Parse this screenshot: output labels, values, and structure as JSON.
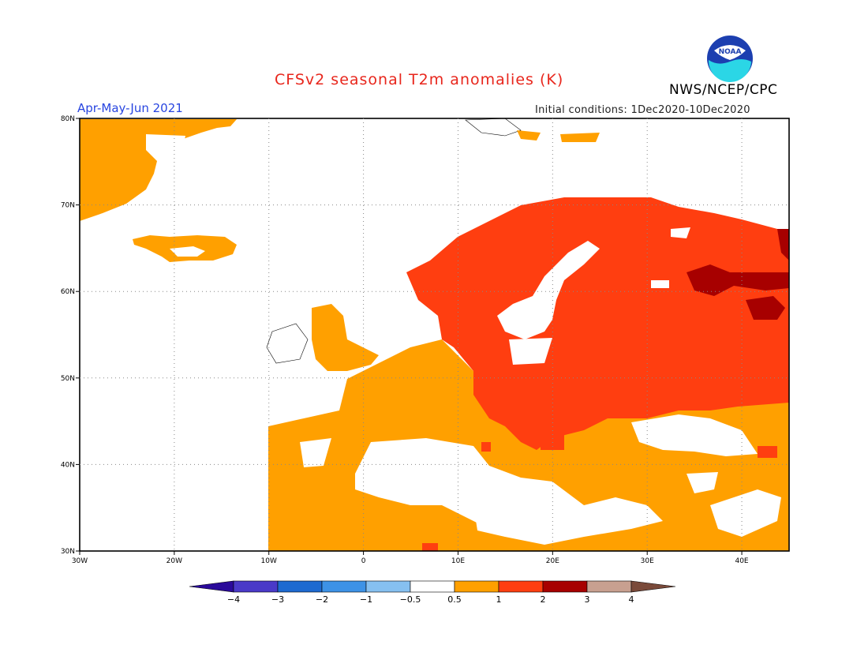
{
  "title": "CFSv2 seasonal T2m anomalies (K)",
  "agency": "NWS/NCEP/CPC",
  "logo_text": "NOAA",
  "period": "Apr-May-Jun 2021",
  "initial_conditions": "Initial conditions: 1Dec2020-10Dec2020",
  "map": {
    "lon_range": [
      -30,
      45
    ],
    "lat_range": [
      30,
      80
    ],
    "lat_ticks": [
      "30N",
      "40N",
      "50N",
      "60N",
      "70N",
      "80N"
    ],
    "lon_ticks": [
      "30W",
      "20W",
      "10W",
      "0",
      "10E",
      "20E",
      "30E",
      "40E"
    ],
    "grid": true
  },
  "colorbar": {
    "labels": [
      "-4",
      "-3",
      "-2",
      "-1",
      "-0.5",
      "0.5",
      "1",
      "2",
      "3",
      "4"
    ],
    "colors": {
      "below_-4": "#2a0a9a",
      "-4_-3": "#4a3ac8",
      "-3_-2": "#1e6ad0",
      "-2_-1": "#3d92e6",
      "-1_-0.5": "#86c0f0",
      "-0.5_0.5": "#ffffff",
      "0.5_1": "#ffa000",
      "1_2": "#ff3e10",
      "2_3": "#a70000",
      "3_4": "#c8a090",
      "above_4": "#7a4a3a"
    }
  }
}
